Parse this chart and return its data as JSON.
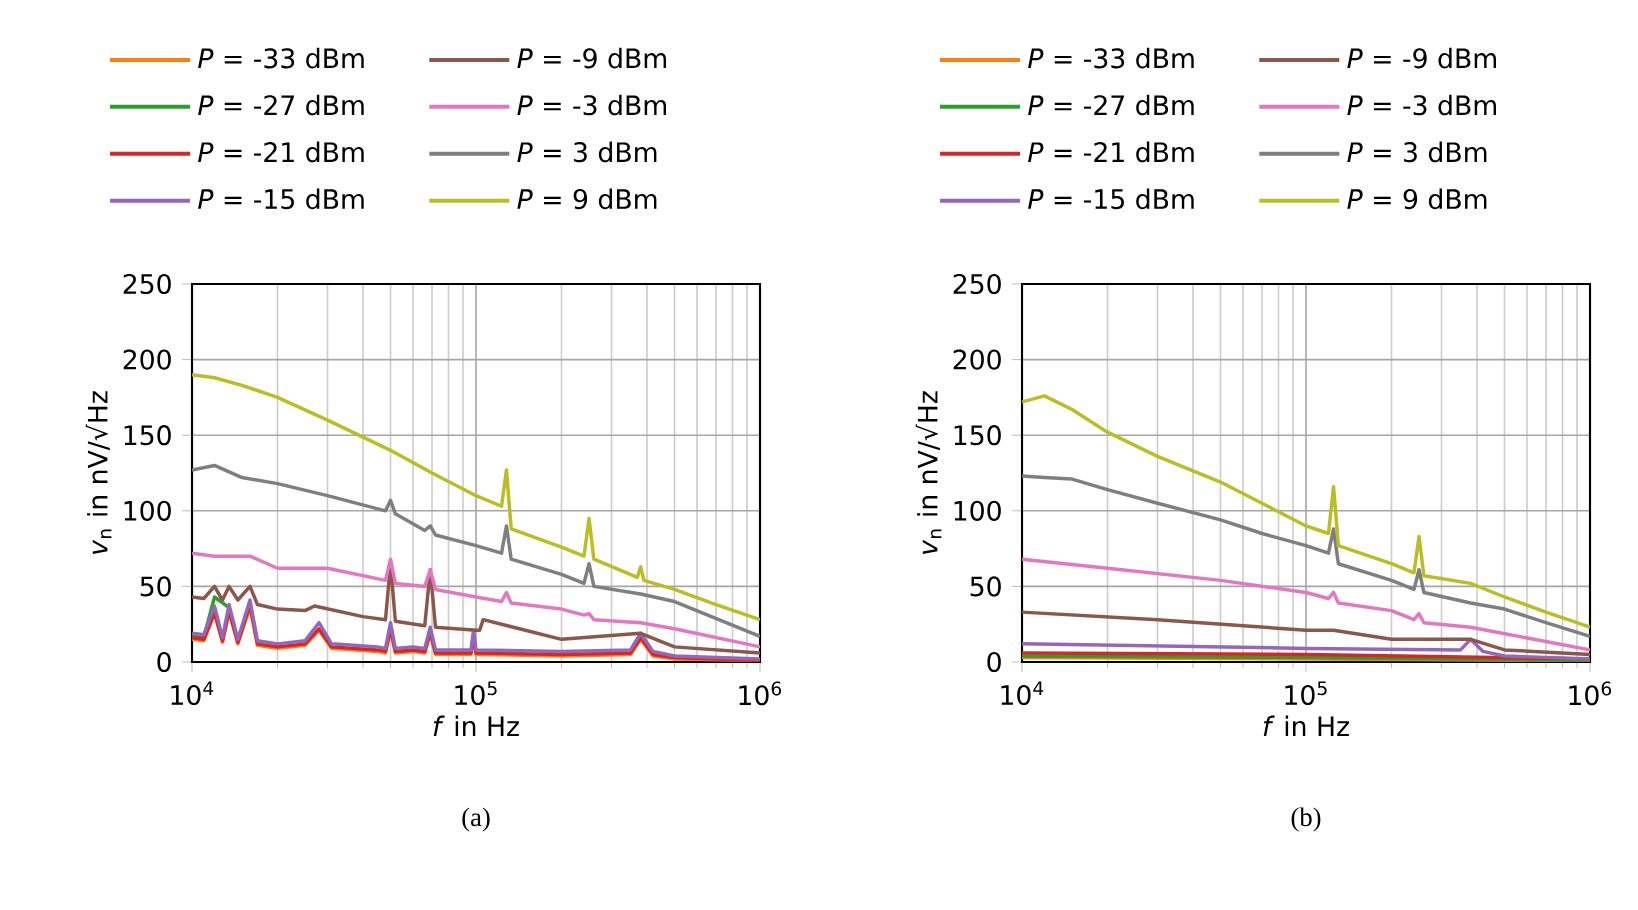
{
  "chart_data": [
    {
      "type": "line",
      "xlabel": "*f* in Hz",
      "ylabel": "*v*$_{n}$ in nV/√Hz",
      "annotations": [
        "(a)"
      ],
      "log": "x",
      "grid": true,
      "legend": "top",
      "xlim": [
        10000,
        1000000
      ],
      "ylim": [
        0,
        250
      ],
      "xticks": [
        {
          "value": 10000,
          "label": "10$^{4}$"
        },
        {
          "value": 100000,
          "label": "10$^{5}$"
        },
        {
          "value": 1000000,
          "label": "10$^{6}$"
        }
      ],
      "yticks": [
        0,
        50,
        100,
        150,
        200,
        250
      ],
      "series": [
        {
          "name": "*P* = -33 dBm",
          "color": "#ff7f0e",
          "x": [
            10000,
            11000,
            12000,
            12800,
            13500,
            14500,
            16000,
            17000,
            20000,
            25000,
            28000,
            31000,
            45000,
            48000,
            50000,
            52000,
            60000,
            66000,
            69000,
            72000,
            90000,
            96000,
            98000,
            100000,
            200000,
            350000,
            380000,
            420000,
            500000,
            1000000
          ],
          "values": [
            15,
            14,
            32,
            13,
            33,
            12,
            36,
            11,
            9,
            11,
            21,
            9,
            7,
            6,
            21,
            6,
            7,
            6,
            19,
            5,
            5,
            5,
            17,
            5,
            4,
            5,
            15,
            4,
            2,
            1
          ]
        },
        {
          "name": "*P* = -27 dBm",
          "color": "#2ca02c",
          "x": [
            10000,
            11000,
            12000,
            12800,
            13500
          ],
          "values": [
            17,
            16,
            43,
            null,
            36
          ]
        },
        {
          "name": "*P* = -21 dBm",
          "color": "#d62728",
          "x": [
            10000,
            11000,
            12000,
            12800,
            13500,
            14500,
            16000,
            17000,
            20000,
            25000,
            28000,
            31000,
            45000,
            48000,
            50000,
            52000,
            60000,
            66000,
            69000,
            72000,
            90000,
            96000,
            98000,
            100000,
            200000,
            350000,
            380000,
            420000,
            500000,
            1000000
          ],
          "values": [
            16,
            15,
            33,
            14,
            34,
            13,
            38,
            12,
            10,
            12,
            22,
            10,
            8,
            7,
            22,
            7,
            8,
            7,
            20,
            6,
            6,
            6,
            18,
            6,
            5,
            6,
            16,
            5,
            3,
            1
          ]
        },
        {
          "name": "*P* = -15 dBm",
          "color": "#9467bd",
          "x": [
            10000,
            11000,
            12000,
            12800,
            13500,
            14500,
            16000,
            17000,
            20000,
            25000,
            28000,
            31000,
            45000,
            48000,
            50000,
            52000,
            60000,
            66000,
            69000,
            72000,
            90000,
            96000,
            98000,
            100000,
            200000,
            350000,
            380000,
            420000,
            500000,
            1000000
          ],
          "values": [
            19,
            18,
            37,
            16,
            38,
            15,
            41,
            14,
            12,
            14,
            26,
            12,
            10,
            9,
            26,
            9,
            10,
            9,
            23,
            8,
            8,
            8,
            21,
            8,
            7,
            8,
            19,
            7,
            4,
            2
          ]
        },
        {
          "name": "*P* = -9 dBm",
          "color": "#8c564b",
          "x": [
            10000,
            11000,
            12000,
            12800,
            13500,
            14500,
            16000,
            17000,
            20000,
            25000,
            27000,
            40000,
            48000,
            50000,
            52000,
            66000,
            69000,
            72000,
            100000,
            103000,
            106000,
            200000,
            380000,
            500000,
            1000000
          ],
          "values": [
            43,
            42,
            50,
            41,
            50,
            41,
            50,
            38,
            35,
            34,
            37,
            30,
            28,
            65,
            27,
            24,
            61,
            23,
            21,
            21,
            28,
            15,
            19,
            10,
            6
          ]
        },
        {
          "name": "*P* = -3 dBm",
          "color": "#e377c2",
          "x": [
            10000,
            12000,
            16000,
            20000,
            30000,
            48000,
            50000,
            52000,
            66000,
            69000,
            72000,
            100000,
            123000,
            128000,
            133000,
            200000,
            240000,
            250000,
            260000,
            380000,
            500000,
            1000000
          ],
          "values": [
            72,
            70,
            70,
            62,
            62,
            54,
            68,
            52,
            50,
            61,
            48,
            43,
            40,
            46,
            39,
            35,
            31,
            32,
            28,
            26,
            22,
            10
          ]
        },
        {
          "name": "*P* = 3 dBm",
          "color": "#7f7f7f",
          "x": [
            10000,
            12000,
            15000,
            20000,
            30000,
            48000,
            50000,
            52000,
            66000,
            69000,
            72000,
            100000,
            123000,
            128000,
            133000,
            200000,
            240000,
            250000,
            260000,
            380000,
            500000,
            1000000
          ],
          "values": [
            127,
            130,
            122,
            118,
            110,
            100,
            107,
            98,
            87,
            90,
            84,
            77,
            72,
            90,
            68,
            58,
            52,
            65,
            50,
            45,
            40,
            17
          ]
        },
        {
          "name": "*P* = 9 dBm",
          "color": "#bcbd22",
          "x": [
            10000,
            12000,
            15000,
            20000,
            30000,
            50000,
            70000,
            100000,
            123000,
            128000,
            133000,
            200000,
            240000,
            250000,
            260000,
            370000,
            380000,
            390000,
            500000,
            700000,
            1000000
          ],
          "values": [
            190,
            188,
            183,
            175,
            160,
            140,
            125,
            110,
            103,
            127,
            88,
            76,
            70,
            95,
            68,
            56,
            63,
            54,
            48,
            38,
            28
          ]
        }
      ]
    },
    {
      "type": "line",
      "xlabel": "*f* in Hz",
      "ylabel": "*v*$_{n}$ in nV/√Hz",
      "annotations": [
        "(b)"
      ],
      "log": "x",
      "grid": true,
      "legend": "top",
      "xlim": [
        10000,
        1000000
      ],
      "ylim": [
        0,
        250
      ],
      "xticks": [
        {
          "value": 10000,
          "label": "10$^{4}$"
        },
        {
          "value": 100000,
          "label": "10$^{5}$"
        },
        {
          "value": 1000000,
          "label": "10$^{6}$"
        }
      ],
      "yticks": [
        0,
        50,
        100,
        150,
        200,
        250
      ],
      "series": [
        {
          "name": "*P* = -33 dBm",
          "color": "#ff7f0e",
          "x": [
            10000,
            100000,
            1000000
          ],
          "values": [
            3,
            2,
            1
          ]
        },
        {
          "name": "*P* = -27 dBm",
          "color": "#2ca02c",
          "x": [
            10000,
            100000,
            1000000
          ],
          "values": [
            4,
            3,
            1
          ]
        },
        {
          "name": "*P* = -21 dBm",
          "color": "#d62728",
          "x": [
            10000,
            100000,
            1000000
          ],
          "values": [
            6,
            5,
            2
          ]
        },
        {
          "name": "*P* = -15 dBm",
          "color": "#9467bd",
          "x": [
            10000,
            100000,
            350000,
            380000,
            420000,
            500000,
            1000000
          ],
          "values": [
            12,
            9,
            8,
            15,
            7,
            4,
            2
          ]
        },
        {
          "name": "*P* = -9 dBm",
          "color": "#8c564b",
          "x": [
            10000,
            30000,
            100000,
            125000,
            200000,
            380000,
            500000,
            1000000
          ],
          "values": [
            33,
            28,
            21,
            21,
            15,
            15,
            8,
            5
          ]
        },
        {
          "name": "*P* = -3 dBm",
          "color": "#e377c2",
          "x": [
            10000,
            20000,
            50000,
            100000,
            120000,
            125000,
            130000,
            200000,
            240000,
            250000,
            260000,
            380000,
            1000000
          ],
          "values": [
            68,
            62,
            54,
            46,
            42,
            46,
            39,
            34,
            28,
            32,
            26,
            23,
            8
          ]
        },
        {
          "name": "*P* = 3 dBm",
          "color": "#7f7f7f",
          "x": [
            10000,
            12000,
            15000,
            20000,
            30000,
            50000,
            70000,
            100000,
            120000,
            125000,
            130000,
            200000,
            240000,
            250000,
            260000,
            380000,
            500000,
            700000,
            1000000
          ],
          "values": [
            123,
            122,
            121,
            114,
            105,
            94,
            85,
            77,
            72,
            88,
            65,
            54,
            48,
            61,
            46,
            39,
            35,
            26,
            17
          ]
        },
        {
          "name": "*P* = 9 dBm",
          "color": "#bcbd22",
          "x": [
            10000,
            12000,
            15000,
            20000,
            30000,
            50000,
            70000,
            100000,
            120000,
            125000,
            130000,
            200000,
            240000,
            250000,
            260000,
            380000,
            500000,
            700000,
            1000000
          ],
          "values": [
            172,
            176,
            167,
            152,
            136,
            119,
            105,
            90,
            85,
            116,
            77,
            65,
            59,
            83,
            57,
            52,
            43,
            33,
            23
          ]
        }
      ]
    }
  ]
}
